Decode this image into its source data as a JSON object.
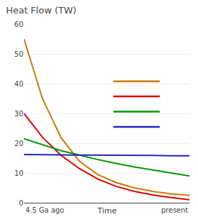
{
  "chart_data": {
    "type": "line",
    "title": "Heat Flow (TW)",
    "xlabel": "Time",
    "annotations": [
      "4.5 Ga ago",
      "present"
    ],
    "x": [
      0,
      0.5,
      1.0,
      1.5,
      2.0,
      2.5,
      3.0,
      3.5,
      4.0,
      4.5
    ],
    "series": [
      {
        "color": "#cc7a00",
        "values": [
          55.0,
          35.0,
          22.0,
          14.0,
          9.5,
          6.8,
          5.0,
          3.8,
          3.0,
          2.5
        ]
      },
      {
        "color": "#dd0000",
        "values": [
          30.0,
          22.0,
          16.0,
          11.5,
          8.0,
          5.5,
          3.8,
          2.6,
          1.7,
          1.0
        ]
      },
      {
        "color": "#009900",
        "values": [
          21.5,
          19.5,
          17.5,
          16.0,
          14.5,
          13.2,
          12.0,
          11.0,
          10.0,
          9.0
        ]
      },
      {
        "color": "#2222cc",
        "values": [
          16.2,
          16.2,
          16.1,
          16.0,
          16.0,
          15.9,
          15.9,
          15.9,
          15.8,
          15.8
        ]
      }
    ],
    "xlim": [
      0,
      4.5
    ],
    "ylim": [
      0,
      60
    ],
    "yticks": [
      0,
      10,
      20,
      30,
      40,
      50,
      60
    ],
    "grid": "y",
    "tick_labels": "y"
  }
}
